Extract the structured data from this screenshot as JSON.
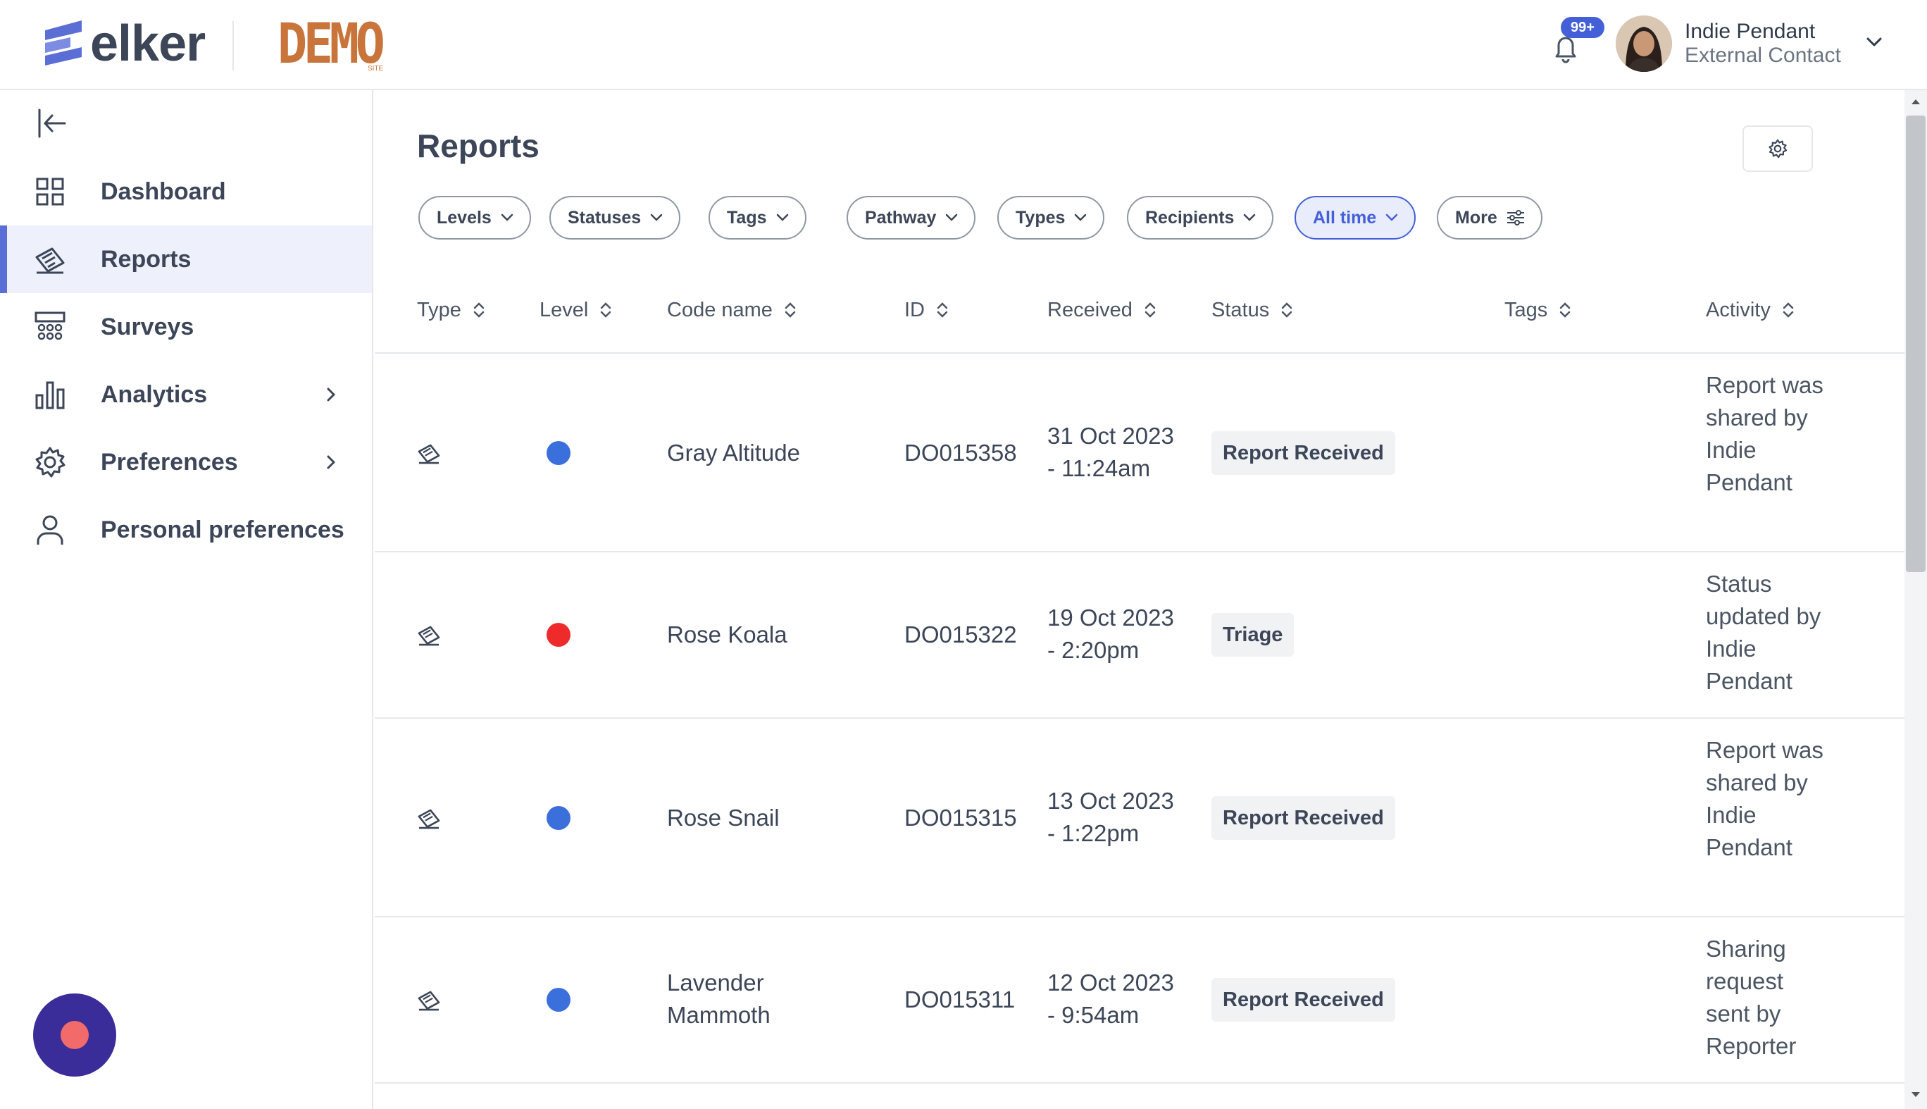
{
  "brand": {
    "logo_text": "elker",
    "demo_text": "DEMO",
    "demo_subtext": "SITE"
  },
  "notifications": {
    "count": "99+"
  },
  "user": {
    "name": "Indie Pendant",
    "role": "External Contact"
  },
  "sidebar": {
    "items": [
      {
        "label": "Dashboard",
        "icon": "grid-icon"
      },
      {
        "label": "Reports",
        "icon": "report-icon",
        "active": true
      },
      {
        "label": "Surveys",
        "icon": "survey-icon"
      },
      {
        "label": "Analytics",
        "icon": "bar-chart-icon",
        "has_submenu": true
      },
      {
        "label": "Preferences",
        "icon": "gear-icon",
        "has_submenu": true
      },
      {
        "label": "Personal preferences",
        "icon": "user-icon"
      }
    ]
  },
  "main": {
    "title": "Reports",
    "filters": [
      {
        "label": "Levels"
      },
      {
        "label": "Statuses"
      },
      {
        "label": "Tags"
      },
      {
        "label": "Pathway"
      },
      {
        "label": "Types"
      },
      {
        "label": "Recipients"
      },
      {
        "label": "All time",
        "selected": true
      },
      {
        "label": "More"
      }
    ],
    "columns": [
      "Type",
      "Level",
      "Code name",
      "ID",
      "Received",
      "Status",
      "Tags",
      "Activity"
    ],
    "rows": [
      {
        "level_color": "#3b6fdc",
        "code_name": "Gray Altitude",
        "id": "DO015358",
        "received_date": "31 Oct 2023",
        "received_time": "- 11:24am",
        "status": "Report Received",
        "activity": "Report was shared by Indie Pendant"
      },
      {
        "level_color": "#ef2a2a",
        "code_name": "Rose Koala",
        "id": "DO015322",
        "received_date": "19 Oct 2023",
        "received_time": "- 2:20pm",
        "status": "Triage",
        "activity": "Status updated by Indie Pendant"
      },
      {
        "level_color": "#3b6fdc",
        "code_name": "Rose Snail",
        "id": "DO015315",
        "received_date": "13 Oct 2023",
        "received_time": "- 1:22pm",
        "status": "Report Received",
        "activity": "Report was shared by Indie Pendant"
      },
      {
        "level_color": "#3b6fdc",
        "code_name": "Lavender Mammoth",
        "id": "DO015311",
        "received_date": "12 Oct 2023",
        "received_time": "- 9:54am",
        "status": "Report Received",
        "activity": "Sharing request sent by Reporter"
      }
    ]
  },
  "colors": {
    "accent": "#4460d8",
    "brand_demo": "#c8743b",
    "sidebar_active_bg": "#eef0fb",
    "fab": "#3a2d9a"
  }
}
